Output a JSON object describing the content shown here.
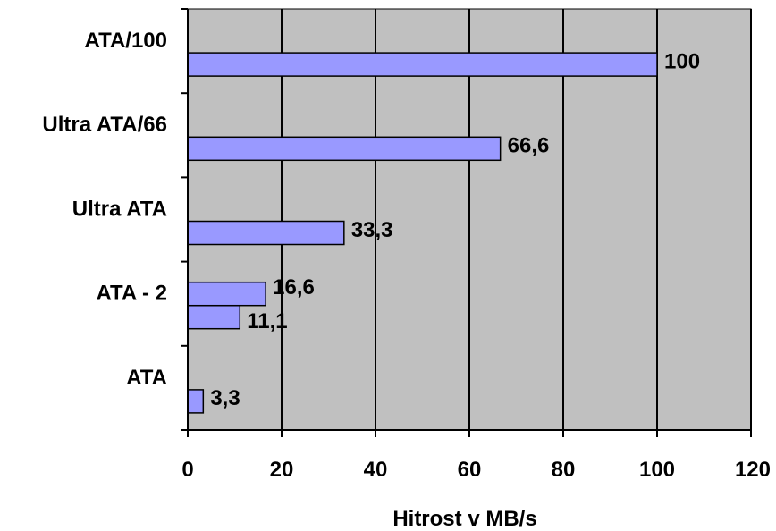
{
  "chart_data": {
    "type": "bar",
    "orientation": "horizontal",
    "categories": [
      "ATA",
      "ATA - 2",
      "Ultra ATA",
      "Ultra ATA/66",
      "ATA/100"
    ],
    "bars": [
      {
        "category": "ATA",
        "value": 3.3,
        "label": "3,3"
      },
      {
        "category": "ATA - 2",
        "value": 11.1,
        "label": "11,1"
      },
      {
        "category": "ATA - 2",
        "value": 16.6,
        "label": "16,6"
      },
      {
        "category": "Ultra ATA",
        "value": 33.3,
        "label": "33,3"
      },
      {
        "category": "Ultra ATA/66",
        "value": 66.6,
        "label": "66,6"
      },
      {
        "category": "ATA/100",
        "value": 100,
        "label": "100"
      }
    ],
    "xlabel": "Hitrost v MB/s",
    "xlim": [
      0,
      120
    ],
    "xticks": [
      "0",
      "20",
      "40",
      "60",
      "80",
      "100",
      "120"
    ],
    "grid": "vertical",
    "plot_background": "#c0c0c0",
    "bar_color": "#9999ff"
  }
}
